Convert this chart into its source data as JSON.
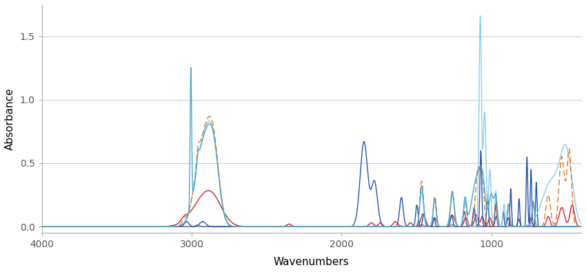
{
  "title": "",
  "xlabel": "Wavenumbers",
  "ylabel": "Absorbance",
  "xlim": [
    4000,
    400
  ],
  "ylim": [
    -0.05,
    1.75
  ],
  "yticks": [
    0.0,
    0.5,
    1.0,
    1.5
  ],
  "xticks": [
    4000,
    3000,
    2000,
    1000
  ],
  "background_color": "#ffffff",
  "grid_color": "#d0d0d0",
  "figsize": [
    8.5,
    3.95
  ],
  "dpi": 100
}
